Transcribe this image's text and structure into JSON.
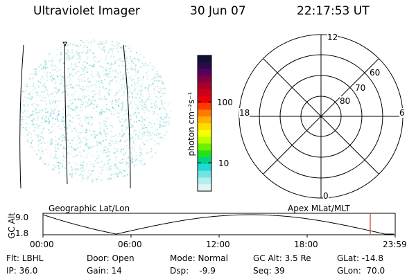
{
  "header": {
    "instrument": "Ultraviolet Imager",
    "date": "30 Jun 07",
    "time": "22:17:53 UT"
  },
  "colorbar": {
    "label": "photon cm⁻²s⁻¹",
    "ticks": [
      "100",
      "10"
    ],
    "colors": [
      "#111133",
      "#2a0a4a",
      "#55005a",
      "#800040",
      "#a8002a",
      "#cc0018",
      "#e8000c",
      "#ff3a00",
      "#ff7a00",
      "#ffb000",
      "#ffdc00",
      "#f4ff00",
      "#b8ff00",
      "#6cf000",
      "#22e21a",
      "#00d28c",
      "#20d8d8",
      "#70e4e4",
      "#b4eeee",
      "#e0f6f6"
    ]
  },
  "polar": {
    "mlt_labels": [
      "12",
      "18",
      "6",
      "0"
    ],
    "lat_labels": [
      "60",
      "70",
      "80"
    ]
  },
  "timeline": {
    "ylabel": "GC Alt",
    "ymax": "9.0",
    "ymin": "1.8",
    "left_label": "Geographic Lat/Lon",
    "right_label": "Apex MLat/MLT",
    "xticks": [
      "00:00",
      "06:00",
      "12:00",
      "18:00",
      "23:59"
    ],
    "current_marker_hour": 22.3
  },
  "info": {
    "flt": "Flt: LBHL",
    "ip": "IP: 36.0",
    "door": "Door: Open",
    "gain": "Gain: 14",
    "mode": "Mode: Normal",
    "dsp": "Dsp:    -9.9",
    "gcalt": "GC Alt: 3.5 Re",
    "seq": "Seq: 39",
    "glat": "GLat: -14.8",
    "glon": "GLon:  70.0"
  }
}
